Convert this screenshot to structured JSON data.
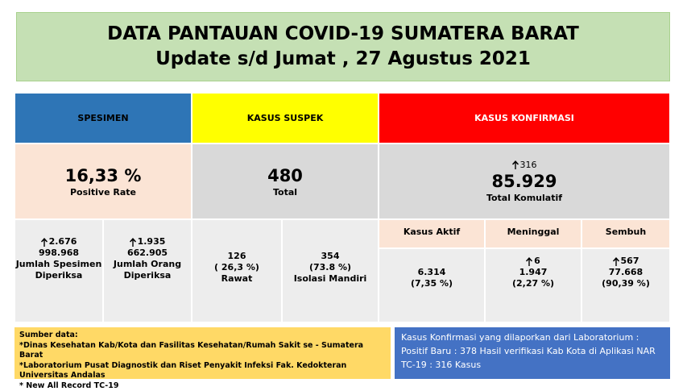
{
  "header": {
    "title": "DATA PANTAUAN COVID-19 SUMATERA BARAT",
    "subtitle": "Update s/d Jumat , 27 Agustus 2021"
  },
  "spesimen": {
    "label": "SPESIMEN",
    "rate": "16,33 %",
    "rate_label": "Positive Rate",
    "items": [
      {
        "increase": "2.676",
        "value": "998.968",
        "label": "Jumlah Spesimen Diperiksa"
      },
      {
        "increase": "1.935",
        "value": "662.905",
        "label": "Jumlah Orang Diperiksa"
      }
    ]
  },
  "suspek": {
    "label": "KASUS SUSPEK",
    "total": "480",
    "total_label": "Total",
    "items": [
      {
        "value": "126",
        "percent": "( 26,3 %)",
        "label": "Rawat"
      },
      {
        "value": "354",
        "percent": "(73.8 %)",
        "label": "Isolasi Mandiri"
      }
    ]
  },
  "konfirmasi": {
    "label": "KASUS KONFIRMASI",
    "increase": "316",
    "total": "85.929",
    "total_label": "Total Komulatif",
    "items": [
      {
        "label": "Kasus Aktif",
        "value": "6.314",
        "percent": "(7,35 %)"
      },
      {
        "label": "Meninggal",
        "increase": "6",
        "value": "1.947",
        "percent": "(2,27 %)"
      },
      {
        "label": "Sembuh",
        "increase": "567",
        "value": "77.668",
        "percent": "(90,39 %)"
      }
    ]
  },
  "sources": {
    "title": "Sumber data:",
    "lines": [
      "*Dinas Kesehatan Kab/Kota  dan Fasilitas Kesehatan/Rumah Sakit se - Sumatera Barat",
      "*Laboratorium  Pusat Diagnostik dan Riset  Penyakit Infeksi Fak. Kedokteran Universitas Andalas",
      "* New All Record TC-19"
    ]
  },
  "note": "Kasus Konfirmasi yang dilaporkan dari Laboratorium : Positif Baru : 378 Hasil verifikasi Kab Kota di Aplikasi NAR TC-19 : 316 Kasus"
}
